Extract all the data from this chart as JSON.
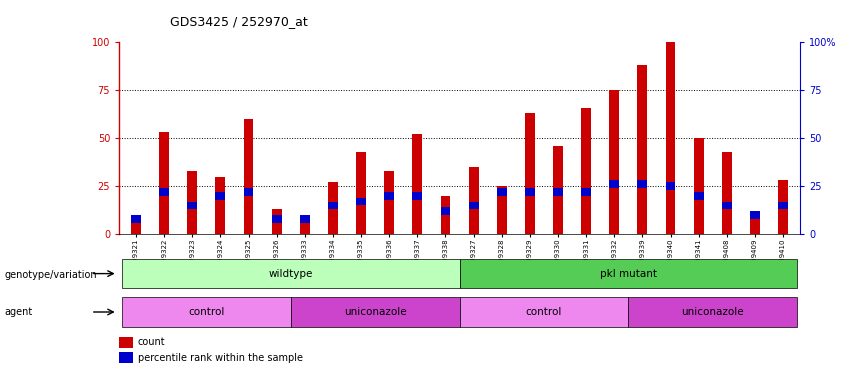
{
  "title": "GDS3425 / 252970_at",
  "samples": [
    "GSM299321",
    "GSM299322",
    "GSM299323",
    "GSM299324",
    "GSM299325",
    "GSM299326",
    "GSM299333",
    "GSM299334",
    "GSM299335",
    "GSM299336",
    "GSM299337",
    "GSM299338",
    "GSM299327",
    "GSM299328",
    "GSM299329",
    "GSM299330",
    "GSM299331",
    "GSM299332",
    "GSM299339",
    "GSM299340",
    "GSM299341",
    "GSM299408",
    "GSM299409",
    "GSM299410"
  ],
  "count_values": [
    8,
    53,
    33,
    30,
    60,
    13,
    7,
    27,
    43,
    33,
    52,
    20,
    35,
    25,
    63,
    46,
    66,
    75,
    88,
    100,
    50,
    43,
    10,
    28
  ],
  "percentile_values": [
    8,
    22,
    15,
    20,
    22,
    8,
    8,
    15,
    17,
    20,
    20,
    12,
    15,
    22,
    22,
    22,
    22,
    26,
    26,
    25,
    20,
    15,
    10,
    15
  ],
  "bar_color": "#cc0000",
  "pct_color": "#0000cc",
  "bg_color": "#ffffff",
  "left_axis_color": "#cc0000",
  "right_axis_color": "#0000cc",
  "ylim": [
    0,
    100
  ],
  "yticks": [
    0,
    25,
    50,
    75,
    100
  ],
  "genotype_groups": [
    {
      "label": "wildtype",
      "start": 0,
      "end": 11,
      "color": "#bbffbb"
    },
    {
      "label": "pkl mutant",
      "start": 12,
      "end": 23,
      "color": "#55cc55"
    }
  ],
  "agent_groups": [
    {
      "label": "control",
      "start": 0,
      "end": 5,
      "color": "#ee88ee"
    },
    {
      "label": "uniconazole",
      "start": 6,
      "end": 11,
      "color": "#cc44cc"
    },
    {
      "label": "control",
      "start": 12,
      "end": 17,
      "color": "#ee88ee"
    },
    {
      "label": "uniconazole",
      "start": 18,
      "end": 23,
      "color": "#cc44cc"
    }
  ],
  "legend_count_label": "count",
  "legend_pct_label": "percentile rank within the sample",
  "genotype_label": "genotype/variation",
  "agent_label": "agent",
  "bar_width": 0.35,
  "pct_bar_width": 0.35,
  "pct_bar_height": 4
}
